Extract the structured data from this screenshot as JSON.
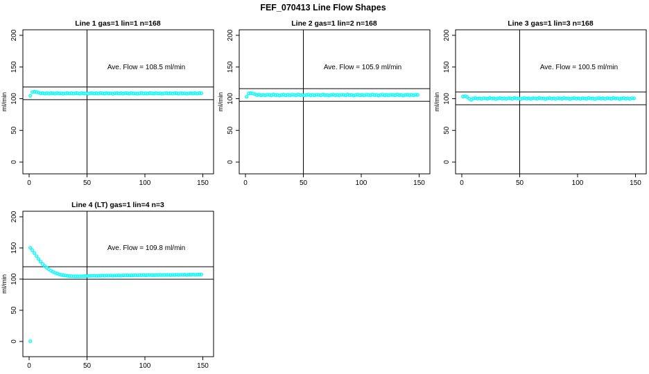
{
  "figure": {
    "title": "FEF_070413  Line Flow Shapes",
    "background_color": "#ffffff",
    "marker_color": "#00FFFF",
    "axis_color": "#000000"
  },
  "chart_data": [
    {
      "type": "scatter",
      "title": "Line 1 gas=1 lin=1 n=168",
      "line": 1,
      "gas": 1,
      "lin": 1,
      "n": 168,
      "avg_flow_value": 108.5,
      "avg_flow_label": "Ave. Flow =  108.5  ml/min",
      "xlabel": "",
      "ylabel": "ml/min",
      "xlim": [
        0,
        150
      ],
      "ylim": [
        0,
        200
      ],
      "xticks": [
        0,
        50,
        100,
        150
      ],
      "yticks": [
        0,
        50,
        100,
        150,
        200
      ],
      "ref_vline_x": 50,
      "ref_hlines": [
        98.5,
        118.5
      ],
      "series": {
        "x_start": 1,
        "x_step": 1.78,
        "y": [
          104.5,
          110.6,
          111.0,
          110.5,
          109.6,
          108.5,
          108.9,
          108.2,
          108.7,
          108.0,
          108.8,
          108.6,
          108.1,
          109.0,
          108.3,
          108.5,
          107.9,
          108.5,
          108.9,
          108.2,
          108.7,
          108.0,
          108.8,
          108.6,
          108.1,
          109.0,
          108.3,
          108.5,
          107.9,
          108.5,
          108.9,
          108.2,
          108.7,
          108.0,
          108.8,
          108.6,
          108.1,
          109.0,
          108.3,
          108.5,
          107.9,
          108.5,
          108.9,
          108.2,
          108.7,
          108.0,
          108.8,
          108.6,
          108.1,
          109.0,
          108.3,
          108.5,
          107.9,
          108.5,
          108.9,
          108.2,
          108.7,
          108.0,
          108.8,
          108.6,
          108.1,
          109.0,
          108.3,
          108.5,
          107.9,
          108.5,
          108.9,
          108.2,
          108.7,
          108.0,
          108.8,
          108.6,
          108.1,
          109.0,
          108.3,
          108.5,
          107.9,
          108.5,
          108.9,
          108.2,
          108.7,
          108.0,
          108.8,
          108.6
        ]
      },
      "extra_points": []
    },
    {
      "type": "scatter",
      "title": "Line 2 gas=1 lin=2 n=168",
      "line": 2,
      "gas": 1,
      "lin": 2,
      "n": 168,
      "avg_flow_value": 105.9,
      "avg_flow_label": "Ave. Flow =  105.9  ml/min",
      "xlabel": "",
      "ylabel": "ml/min",
      "xlim": [
        0,
        150
      ],
      "ylim": [
        0,
        200
      ],
      "xticks": [
        0,
        50,
        100,
        150
      ],
      "yticks": [
        0,
        50,
        100,
        150,
        200
      ],
      "ref_vline_x": 50,
      "ref_hlines": [
        95.9,
        115.9
      ],
      "series": {
        "x_start": 1,
        "x_step": 1.78,
        "y": [
          103.2,
          108.3,
          108.8,
          108.2,
          107.2,
          105.9,
          106.5,
          105.4,
          106.1,
          105.2,
          106.3,
          106.0,
          105.4,
          106.7,
          105.6,
          105.9,
          105.0,
          105.9,
          106.5,
          105.4,
          106.1,
          105.2,
          106.3,
          106.0,
          105.4,
          106.7,
          105.6,
          105.9,
          105.0,
          105.9,
          106.5,
          105.4,
          106.1,
          105.2,
          106.3,
          106.0,
          105.4,
          106.7,
          105.6,
          105.9,
          105.0,
          105.9,
          106.5,
          105.4,
          106.1,
          105.2,
          106.3,
          106.0,
          105.4,
          106.7,
          105.6,
          105.9,
          105.0,
          105.9,
          106.5,
          105.4,
          106.1,
          105.2,
          106.3,
          106.0,
          105.4,
          106.7,
          105.6,
          105.9,
          105.0,
          105.9,
          106.5,
          105.4,
          106.1,
          105.2,
          106.3,
          106.0,
          105.4,
          106.7,
          105.6,
          105.9,
          105.0,
          105.9,
          106.5,
          105.4,
          106.1,
          105.2,
          106.3,
          106.0
        ]
      },
      "extra_points": []
    },
    {
      "type": "scatter",
      "title": "Line 3 gas=1 lin=3 n=168",
      "line": 3,
      "gas": 1,
      "lin": 3,
      "n": 168,
      "avg_flow_value": 100.5,
      "avg_flow_label": "Ave. Flow =  100.5  ml/min",
      "xlabel": "",
      "ylabel": "ml/min",
      "xlim": [
        0,
        150
      ],
      "ylim": [
        0,
        200
      ],
      "xticks": [
        0,
        50,
        100,
        150
      ],
      "yticks": [
        0,
        50,
        100,
        150,
        200
      ],
      "ref_vline_x": 50,
      "ref_hlines": [
        90.5,
        110.5
      ],
      "series": {
        "x_start": 1,
        "x_step": 1.78,
        "y": [
          103.3,
          104.0,
          102.8,
          100.2,
          98.3,
          100.5,
          101.0,
          100.1,
          100.7,
          99.8,
          100.9,
          100.6,
          100.0,
          101.2,
          100.3,
          100.5,
          99.6,
          100.5,
          101.0,
          100.1,
          100.7,
          99.8,
          100.9,
          100.6,
          100.0,
          101.2,
          100.3,
          100.5,
          99.6,
          100.5,
          101.0,
          100.1,
          100.7,
          99.8,
          100.9,
          100.6,
          100.0,
          101.2,
          100.3,
          100.5,
          99.6,
          100.5,
          101.0,
          100.1,
          100.7,
          99.8,
          100.9,
          100.6,
          100.0,
          101.2,
          100.3,
          100.5,
          99.6,
          100.5,
          101.0,
          100.1,
          100.7,
          99.8,
          100.9,
          100.6,
          100.0,
          101.2,
          100.3,
          100.5,
          99.6,
          100.5,
          101.0,
          100.1,
          100.7,
          99.8,
          100.9,
          100.6,
          100.0,
          101.2,
          100.3,
          100.5,
          99.6,
          100.5,
          101.0,
          100.1,
          100.7,
          99.8,
          100.9,
          100.6
        ]
      },
      "extra_points": []
    },
    {
      "type": "scatter",
      "title": "Line 4 (LT) gas=1 lin=4 n=3",
      "line": 4,
      "gas": 1,
      "lin": 4,
      "n": 3,
      "avg_flow_value": 109.8,
      "avg_flow_label": "Ave. Flow =  109.8  ml/min",
      "xlabel": "",
      "ylabel": "ml/min",
      "xlim": [
        0,
        150
      ],
      "ylim": [
        0,
        200
      ],
      "xticks": [
        0,
        50,
        100,
        150
      ],
      "yticks": [
        0,
        50,
        100,
        150,
        200
      ],
      "ref_vline_x": 50,
      "ref_hlines": [
        99.8,
        119.8
      ],
      "series": {
        "x_start": 1,
        "x_step": 1.78,
        "y": [
          150.3,
          146.5,
          141.8,
          136.9,
          132.2,
          128.0,
          124.2,
          121.0,
          118.2,
          115.8,
          113.6,
          111.8,
          110.2,
          108.9,
          107.8,
          106.9,
          106.2,
          105.7,
          105.3,
          105.0,
          104.8,
          104.7,
          104.6,
          104.6,
          104.7,
          104.8,
          104.9,
          105.0,
          105.1,
          105.2,
          105.3,
          105.6,
          105.2,
          105.5,
          105.5,
          105.7,
          105.3,
          105.7,
          105.6,
          105.9,
          105.5,
          105.8,
          105.8,
          106.0,
          105.6,
          106.0,
          105.9,
          106.2,
          105.8,
          106.1,
          106.1,
          106.3,
          105.9,
          106.3,
          106.2,
          106.5,
          106.1,
          106.4,
          106.4,
          106.6,
          106.2,
          106.6,
          106.5,
          106.8,
          106.4,
          106.7,
          106.7,
          106.9,
          106.5,
          106.9,
          106.8,
          107.1,
          106.7,
          107.0,
          107.0,
          107.2,
          106.8,
          107.2,
          107.1,
          107.4,
          107.0,
          107.3,
          107.3,
          107.5
        ]
      },
      "extra_points": [
        [
          1,
          0.5
        ]
      ]
    }
  ]
}
